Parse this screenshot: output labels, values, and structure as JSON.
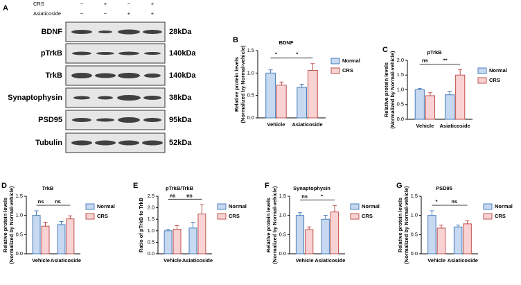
{
  "blot": {
    "panel": "A",
    "conditions": [
      {
        "name": "CRS",
        "signs": [
          "−",
          "+",
          "−",
          "+"
        ]
      },
      {
        "name": "Asiaticoside",
        "signs": [
          "−",
          "−",
          "+",
          "+"
        ]
      }
    ],
    "rows": [
      {
        "protein": "BDNF",
        "size": "28kDa"
      },
      {
        "protein": "pTrkB",
        "size": "140kDa"
      },
      {
        "protein": "TrkB",
        "size": "140kDa"
      },
      {
        "protein": "Synaptophysin",
        "size": "38kDa"
      },
      {
        "protein": "PSD95",
        "size": "95kDa"
      },
      {
        "protein": "Tubulin",
        "size": "52kDa"
      }
    ]
  },
  "chart_data": [
    {
      "type": "bar",
      "panel": "B",
      "title": "BDNF",
      "ylabel": [
        "Relative protein levels",
        "(Normalized by Normal-vehicle)"
      ],
      "categories": [
        "Vehicle",
        "Asiaticoside"
      ],
      "series": [
        {
          "name": "Normal",
          "color": "#c6d9f1",
          "edge": "#4a7ebb",
          "values": [
            1.0,
            0.68
          ],
          "errors": [
            0.07,
            0.07
          ]
        },
        {
          "name": "CRS",
          "color": "#f9d3d3",
          "edge": "#c0504d",
          "values": [
            0.73,
            1.06
          ],
          "errors": [
            0.07,
            0.15
          ]
        }
      ],
      "ylim": [
        0,
        1.5
      ],
      "yticks": [
        {
          "value": 0,
          "label": "0.0"
        },
        {
          "value": 0.5,
          "label": "0.5"
        },
        {
          "value": 1,
          "label": "1.0"
        },
        {
          "value": 1.5,
          "label": "1.5"
        }
      ],
      "annotations": [
        "*",
        "*"
      ]
    },
    {
      "type": "bar",
      "panel": "C",
      "title": "pTrkB",
      "ylabel": [
        "Relative protein levels",
        "(Normalized by Normal-vehicle)"
      ],
      "categories": [
        "Vehicle",
        "Asiaticoside"
      ],
      "series": [
        {
          "name": "Normal",
          "color": "#c6d9f1",
          "edge": "#4a7ebb",
          "values": [
            1.0,
            0.83
          ],
          "errors": [
            0.05,
            0.12
          ]
        },
        {
          "name": "CRS",
          "color": "#f9d3d3",
          "edge": "#c0504d",
          "values": [
            0.8,
            1.5
          ],
          "errors": [
            0.1,
            0.18
          ]
        }
      ],
      "ylim": [
        0,
        2
      ],
      "yticks": [
        {
          "value": 0,
          "label": "0.0"
        },
        {
          "value": 0.5,
          "label": "0.5"
        },
        {
          "value": 1,
          "label": "1.0"
        },
        {
          "value": 1.5,
          "label": "1.5"
        },
        {
          "value": 2,
          "label": "2.0"
        }
      ],
      "annotations": [
        "ns",
        "**"
      ]
    },
    {
      "type": "bar",
      "panel": "D",
      "title": "TrkB",
      "ylabel": [
        "Relative protein levels",
        "(Normalized by Normal-vehicle)"
      ],
      "categories": [
        "Vehicle",
        "Asiaticoside"
      ],
      "series": [
        {
          "name": "Normal",
          "color": "#c6d9f1",
          "edge": "#4a7ebb",
          "values": [
            1.0,
            0.76
          ],
          "errors": [
            0.12,
            0.08
          ]
        },
        {
          "name": "CRS",
          "color": "#f9d3d3",
          "edge": "#c0504d",
          "values": [
            0.72,
            0.91
          ],
          "errors": [
            0.1,
            0.08
          ]
        }
      ],
      "ylim": [
        0,
        1.5
      ],
      "yticks": [
        {
          "value": 0,
          "label": "0.0"
        },
        {
          "value": 0.5,
          "label": "0.5"
        },
        {
          "value": 1,
          "label": "1.0"
        },
        {
          "value": 1.5,
          "label": "1.5"
        }
      ],
      "annotations": [
        "ns",
        "ns"
      ]
    },
    {
      "type": "bar",
      "panel": "E",
      "title": "pTrkB/TrkB",
      "ylabel": [
        "Ratio of pTrkB to TrkB"
      ],
      "categories": [
        "Vehicle",
        "Asiaticoside"
      ],
      "series": [
        {
          "name": "Normal",
          "color": "#c6d9f1",
          "edge": "#4a7ebb",
          "values": [
            1.0,
            1.12
          ],
          "errors": [
            0.06,
            0.25
          ]
        },
        {
          "name": "CRS",
          "color": "#f9d3d3",
          "edge": "#c0504d",
          "values": [
            1.07,
            1.73
          ],
          "errors": [
            0.15,
            0.4
          ]
        }
      ],
      "ylim": [
        0,
        2.5
      ],
      "yticks": [
        {
          "value": 0,
          "label": "0.0"
        },
        {
          "value": 0.5,
          "label": "0.5"
        },
        {
          "value": 1,
          "label": "1.0"
        },
        {
          "value": 1.5,
          "label": "1.5"
        },
        {
          "value": 2,
          "label": "2.0"
        },
        {
          "value": 2.5,
          "label": "2.5"
        }
      ],
      "annotations": [
        "ns",
        "ns"
      ]
    },
    {
      "type": "bar",
      "panel": "F",
      "title": "Synaptophysin",
      "ylabel": [
        "Relative protein levels",
        "(Normalized by Normal-vehicle)"
      ],
      "categories": [
        "Vehicle",
        "Asiaticoside"
      ],
      "series": [
        {
          "name": "Normal",
          "color": "#c6d9f1",
          "edge": "#4a7ebb",
          "values": [
            1.0,
            0.9
          ],
          "errors": [
            0.07,
            0.1
          ]
        },
        {
          "name": "CRS",
          "color": "#f9d3d3",
          "edge": "#c0504d",
          "values": [
            0.63,
            1.09
          ],
          "errors": [
            0.07,
            0.17
          ]
        }
      ],
      "ylim": [
        0,
        1.5
      ],
      "yticks": [
        {
          "value": 0,
          "label": "0.0"
        },
        {
          "value": 0.5,
          "label": "0.5"
        },
        {
          "value": 1,
          "label": "1.0"
        },
        {
          "value": 1.5,
          "label": "1.5"
        }
      ],
      "annotations": [
        "ns",
        "*"
      ]
    },
    {
      "type": "bar",
      "panel": "G",
      "title": "PSD95",
      "ylabel": [
        "Relative protein levels",
        "(Normalized by Normal-vehicle)"
      ],
      "categories": [
        "Vehicle",
        "Asiaticoside"
      ],
      "series": [
        {
          "name": "Normal",
          "color": "#c6d9f1",
          "edge": "#4a7ebb",
          "values": [
            1.0,
            0.7
          ],
          "errors": [
            0.12,
            0.05
          ]
        },
        {
          "name": "CRS",
          "color": "#f9d3d3",
          "edge": "#c0504d",
          "values": [
            0.67,
            0.78
          ],
          "errors": [
            0.08,
            0.08
          ]
        }
      ],
      "ylim": [
        0,
        1.5
      ],
      "yticks": [
        {
          "value": 0,
          "label": "0.0"
        },
        {
          "value": 0.5,
          "label": "0.5"
        },
        {
          "value": 1,
          "label": "1.0"
        },
        {
          "value": 1.5,
          "label": "1.5"
        }
      ],
      "annotations": [
        "*",
        "ns"
      ]
    }
  ]
}
